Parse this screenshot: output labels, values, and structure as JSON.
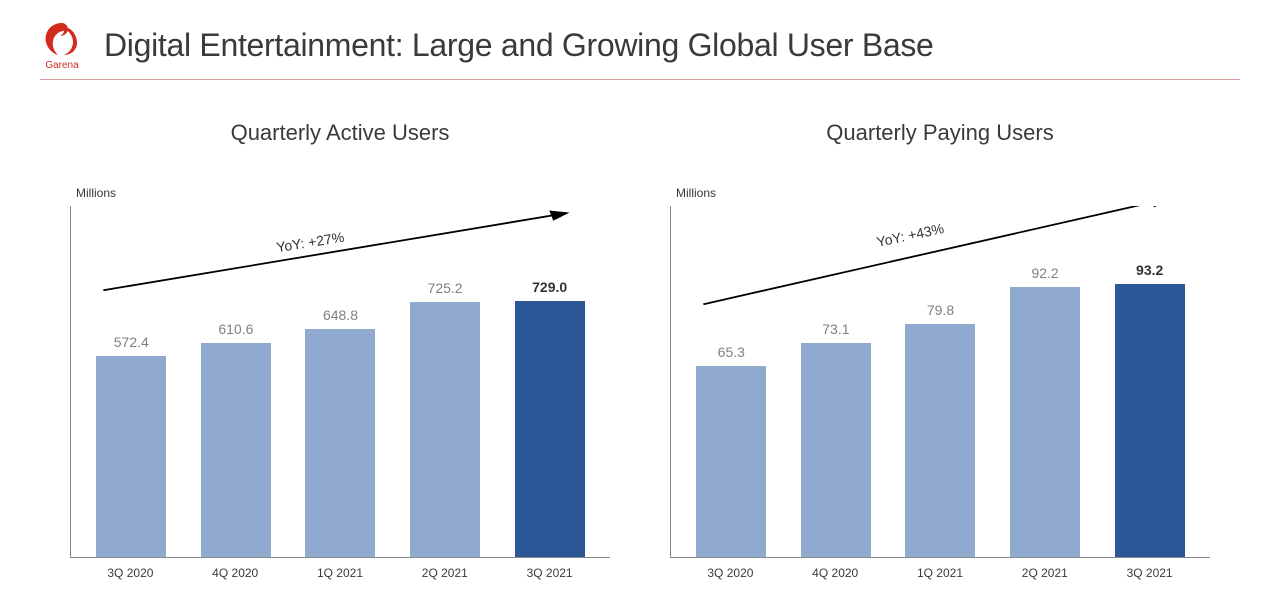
{
  "brand": {
    "name": "Garena",
    "logo_color": "#d32b1e"
  },
  "page_title": "Digital Entertainment: Large and Growing Global User Base",
  "header_divider_color": "#d9a0a0",
  "colors": {
    "bar_light": "#8fa9cf",
    "bar_dark": "#2b5797",
    "value_label_normal": "#808080",
    "value_label_highlight": "#333333",
    "axis": "#888888",
    "text": "#3a3a3a",
    "background": "#ffffff"
  },
  "typography": {
    "title_fontsize": 32,
    "chart_title_fontsize": 22,
    "value_fontsize": 14,
    "axis_fontsize": 12,
    "unit_fontsize": 12,
    "yoy_fontsize": 14
  },
  "chart_left": {
    "type": "bar",
    "title": "Quarterly Active Users",
    "unit_label": "Millions",
    "yoy_label": "YoY: +27%",
    "categories": [
      "3Q 2020",
      "4Q 2020",
      "1Q 2021",
      "2Q 2021",
      "3Q 2021"
    ],
    "values": [
      572.4,
      610.6,
      648.8,
      725.2,
      729.0
    ],
    "value_labels": [
      "572.4",
      "610.6",
      "648.8",
      "725.2",
      "729.0"
    ],
    "highlight_index": 4,
    "ymax": 1000,
    "arrow": {
      "x1_pct": 6,
      "y1_pct": 24,
      "x2_pct": 92,
      "y2_pct": 2
    },
    "yoy_pos": {
      "left_pct": 38,
      "top_pct": 8,
      "rotate_deg": -9
    }
  },
  "chart_right": {
    "type": "bar",
    "title": "Quarterly Paying Users",
    "unit_label": "Millions",
    "yoy_label": "YoY: +43%",
    "categories": [
      "3Q 2020",
      "4Q 2020",
      "1Q 2021",
      "2Q 2021",
      "3Q 2021"
    ],
    "values": [
      65.3,
      73.1,
      79.8,
      92.2,
      93.2
    ],
    "value_labels": [
      "65.3",
      "73.1",
      "79.8",
      "92.2",
      "93.2"
    ],
    "highlight_index": 4,
    "ymax": 120,
    "arrow": {
      "x1_pct": 6,
      "y1_pct": 28,
      "x2_pct": 92,
      "y2_pct": -2
    },
    "yoy_pos": {
      "left_pct": 38,
      "top_pct": 6,
      "rotate_deg": -12
    }
  }
}
